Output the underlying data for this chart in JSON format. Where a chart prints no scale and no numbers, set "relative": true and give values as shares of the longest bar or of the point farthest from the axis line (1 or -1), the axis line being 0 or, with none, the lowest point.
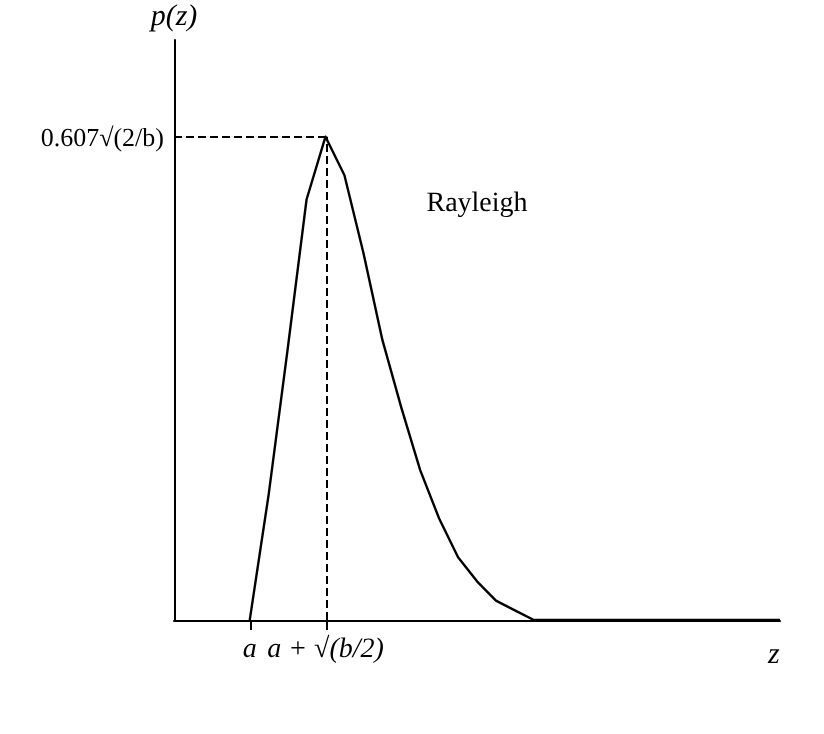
{
  "chart_data": {
    "type": "line",
    "relative": true,
    "xlabel": "z",
    "ylabel": "p(z)",
    "categories": [
      null,
      null,
      null,
      null,
      "a",
      null,
      null,
      null,
      "a + √(b/2)",
      null,
      null,
      null,
      null,
      null,
      null,
      null,
      null,
      null,
      null,
      null,
      null,
      null,
      null,
      null,
      null,
      null,
      null,
      null,
      null,
      null,
      null,
      null,
      null
    ],
    "series": [
      {
        "name": "Rayleigh",
        "color": "#000000",
        "values": [
          null,
          null,
          null,
          null,
          0,
          0.26,
          0.56,
          0.87,
          1,
          0.92,
          0.76,
          0.58,
          0.44,
          0.31,
          0.21,
          0.13,
          0.08,
          0.04,
          0.02,
          0,
          0,
          0,
          0,
          0,
          0,
          0,
          0,
          0,
          0,
          0,
          0,
          0,
          0
        ]
      }
    ],
    "ref_lines": [
      {
        "axis": "y",
        "value": 1,
        "label": "0.607√(2/b)",
        "line_style": "dashed"
      },
      {
        "axis": "x",
        "value": "a + √(b/2)",
        "line_style": "dashed"
      }
    ],
    "grid": false,
    "legend": false,
    "marker": "none",
    "line_style": "solid"
  }
}
